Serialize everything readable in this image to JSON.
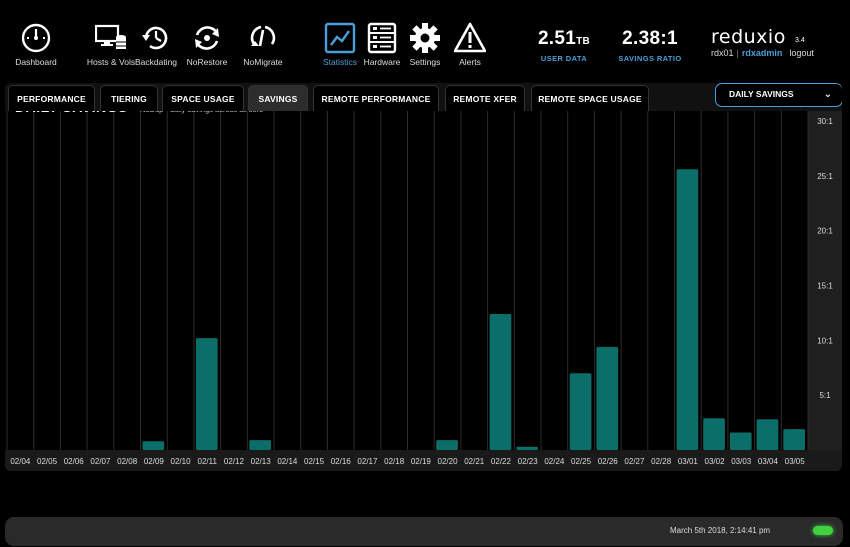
{
  "nav": [
    {
      "id": "dashboard",
      "label": "Dashboard",
      "icon": "gauge-icon",
      "active": false
    },
    {
      "id": "hosts",
      "label": "Hosts & Vols",
      "icon": "hosts-volumes-icon",
      "active": false
    },
    {
      "id": "backdating",
      "label": "Backdating",
      "icon": "backdating-icon",
      "active": false
    },
    {
      "id": "norestore",
      "label": "NoRestore",
      "icon": "norestore-icon",
      "active": false
    },
    {
      "id": "nomigrate",
      "label": "NoMigrate",
      "icon": "nomigrate-icon",
      "active": false
    },
    {
      "id": "statistics",
      "label": "Statistics",
      "icon": "statistics-chart-icon",
      "active": true
    },
    {
      "id": "hardware",
      "label": "Hardware",
      "icon": "hardware-server-icon",
      "active": false
    },
    {
      "id": "settings",
      "label": "Settings",
      "icon": "gear-icon",
      "active": false
    },
    {
      "id": "alerts",
      "label": "Alerts",
      "icon": "warning-triangle-icon",
      "active": false
    }
  ],
  "stats": {
    "user_data": {
      "value": "2.51",
      "unit": "TB",
      "label": "USER DATA"
    },
    "savings_ratio": {
      "value": "2.38:1",
      "label": "SAVINGS RATIO"
    }
  },
  "brand": {
    "name": "reduxio",
    "version": "3.4"
  },
  "user": {
    "system": "rdx01",
    "separator": "|",
    "name": "rdxadmin",
    "logout": "logout"
  },
  "tabs": [
    {
      "label": "PERFORMANCE",
      "active": false
    },
    {
      "label": "TIERING",
      "active": false
    },
    {
      "label": "SPACE USAGE",
      "active": false
    },
    {
      "label": "SAVINGS",
      "active": true
    },
    {
      "label": "REMOTE PERFORMANCE",
      "active": false
    },
    {
      "label": "REMOTE XFER",
      "active": false
    },
    {
      "label": "REMOTE SPACE USAGE",
      "active": false
    }
  ],
  "dropdown": {
    "selected": "DAILY SAVINGS",
    "icon": "chevron-down-icon"
  },
  "chart_data": {
    "type": "bar",
    "title": "DAILY SAVINGS",
    "subtitle": "NoDup - daily savings across all tiers",
    "categories": [
      "02/04",
      "02/05",
      "02/06",
      "02/07",
      "02/08",
      "02/09",
      "02/10",
      "02/11",
      "02/12",
      "02/13",
      "02/14",
      "02/15",
      "02/16",
      "02/17",
      "02/18",
      "02/19",
      "02/20",
      "02/21",
      "02/22",
      "02/23",
      "02/24",
      "02/25",
      "02/26",
      "02/27",
      "02/28",
      "03/01",
      "03/02",
      "03/03",
      "03/04",
      "03/05"
    ],
    "values": [
      0,
      0,
      0,
      0,
      0,
      0.8,
      0,
      10.2,
      0,
      0.9,
      0,
      0,
      0,
      0,
      0,
      0,
      0.9,
      0,
      12.4,
      0.3,
      0,
      7.0,
      9.4,
      0,
      0,
      25.6,
      2.9,
      1.6,
      2.8,
      1.9
    ],
    "ylim": [
      0,
      31
    ],
    "yticks": [
      5,
      10,
      15,
      20,
      25,
      30
    ],
    "ytick_labels": [
      "5:1",
      "10:1",
      "15:1",
      "20:1",
      "25:1",
      "30:1"
    ],
    "bar_color": "#0b6e69",
    "grid": true
  },
  "status": {
    "timestamp": "March 5th 2018, 2:14:41 pm",
    "indicator_color": "#3fd13f"
  }
}
